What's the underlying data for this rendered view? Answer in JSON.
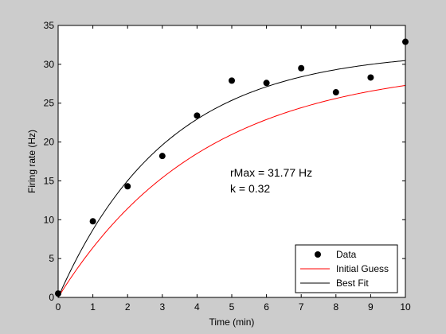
{
  "figure": {
    "background": "#cccccc",
    "axes_background": "#ffffff"
  },
  "chart_data": {
    "type": "scatter",
    "title": "",
    "xlabel": "Time (min)",
    "ylabel": "Firing rate (Hz)",
    "xlim": [
      0,
      10
    ],
    "ylim": [
      0,
      35
    ],
    "xticks": [
      "0",
      "1",
      "2",
      "3",
      "4",
      "5",
      "6",
      "7",
      "8",
      "9",
      "10"
    ],
    "yticks": [
      "0",
      "5",
      "10",
      "15",
      "20",
      "25",
      "30",
      "35"
    ],
    "grid": false,
    "legend_position": "bottom-right",
    "series": [
      {
        "name": "Data",
        "kind": "markers",
        "color": "#000000",
        "x": [
          0,
          1,
          2,
          3,
          4,
          5,
          6,
          7,
          8,
          9,
          10
        ],
        "y": [
          0.5,
          9.8,
          14.3,
          18.2,
          23.4,
          27.9,
          27.6,
          29.5,
          26.4,
          28.3,
          32.9
        ]
      },
      {
        "name": "Initial Guess",
        "kind": "curve",
        "color": "#ff0000",
        "model": "rMax*(1-exp(-k*t))",
        "rMax": 30,
        "k": 0.24
      },
      {
        "name": "Best Fit",
        "kind": "curve",
        "color": "#000000",
        "model": "rMax*(1-exp(-k*t))",
        "rMax": 31.77,
        "k": 0.32
      }
    ],
    "annotations": [
      "rMax = 31.77 Hz",
      "k =  0.32"
    ]
  }
}
